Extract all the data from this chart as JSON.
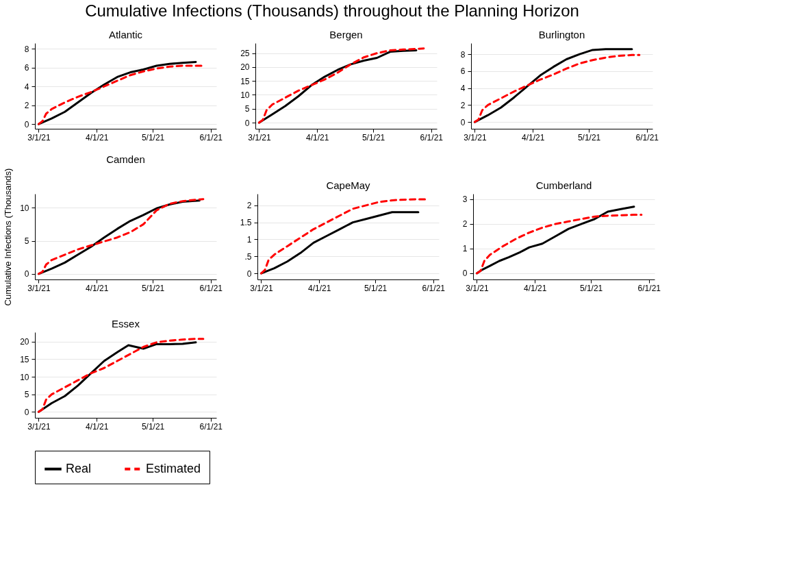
{
  "chart_data": [
    {
      "type": "line",
      "title": "Atlantic",
      "legend": "bottom",
      "annotations": [
        "Cumulative Infections (Thousands) throughout the Planning Horizon"
      ],
      "xlim": [
        "2021-02-27",
        "2021-06-04"
      ],
      "xticks": [
        {
          "value": "2021-03-01",
          "label": "3/1/21"
        },
        {
          "value": "2021-04-01",
          "label": "4/1/21"
        },
        {
          "value": "2021-05-01",
          "label": "5/1/21"
        },
        {
          "value": "2021-06-01",
          "label": "6/1/21"
        }
      ],
      "ylim": [
        -0.5,
        8.6
      ],
      "yticks": [
        0,
        2,
        4,
        6,
        8
      ],
      "grid": "y",
      "series": [
        {
          "name": "Real",
          "color": "#000000",
          "line_style": "solid",
          "x": [
            "2021-03-01",
            "2021-03-08",
            "2021-03-15",
            "2021-03-22",
            "2021-03-29",
            "2021-04-05",
            "2021-04-12",
            "2021-04-19",
            "2021-04-26",
            "2021-05-03",
            "2021-05-10",
            "2021-05-17",
            "2021-05-24"
          ],
          "values": [
            0,
            0.6,
            1.3,
            2.3,
            3.3,
            4.2,
            5.0,
            5.5,
            5.8,
            6.2,
            6.4,
            6.5,
            6.6
          ]
        },
        {
          "name": "Estimated",
          "color": "#ff0000",
          "line_style": "dashed",
          "x": [
            "2021-03-01",
            "2021-03-03",
            "2021-03-05",
            "2021-03-08",
            "2021-03-15",
            "2021-03-22",
            "2021-03-29",
            "2021-04-05",
            "2021-04-12",
            "2021-04-19",
            "2021-04-26",
            "2021-05-03",
            "2021-05-10",
            "2021-05-17",
            "2021-05-24",
            "2021-05-28"
          ],
          "values": [
            0,
            0.3,
            1.1,
            1.6,
            2.3,
            2.9,
            3.4,
            4.0,
            4.6,
            5.2,
            5.6,
            5.9,
            6.1,
            6.2,
            6.2,
            6.2
          ]
        }
      ]
    },
    {
      "type": "line",
      "title": "Bergen",
      "xlim": [
        "2021-02-27",
        "2021-06-04"
      ],
      "xticks": [
        {
          "value": "2021-03-01",
          "label": "3/1/21"
        },
        {
          "value": "2021-04-01",
          "label": "4/1/21"
        },
        {
          "value": "2021-05-01",
          "label": "5/1/21"
        },
        {
          "value": "2021-06-01",
          "label": "6/1/21"
        }
      ],
      "ylim": [
        -2.2,
        28.6
      ],
      "yticks": [
        0,
        5,
        10,
        15,
        20,
        25
      ],
      "grid": "y",
      "series": [
        {
          "name": "Real",
          "color": "#000000",
          "line_style": "solid",
          "x": [
            "2021-03-01",
            "2021-03-08",
            "2021-03-15",
            "2021-03-22",
            "2021-03-29",
            "2021-04-05",
            "2021-04-12",
            "2021-04-19",
            "2021-04-26",
            "2021-05-03",
            "2021-05-10",
            "2021-05-17",
            "2021-05-24"
          ],
          "values": [
            0,
            3,
            6,
            9.5,
            13.5,
            16.5,
            19,
            21,
            22.3,
            23.3,
            25.5,
            25.8,
            26
          ]
        },
        {
          "name": "Estimated",
          "color": "#ff0000",
          "line_style": "dashed",
          "x": [
            "2021-03-01",
            "2021-03-03",
            "2021-03-05",
            "2021-03-08",
            "2021-03-15",
            "2021-03-22",
            "2021-03-29",
            "2021-04-05",
            "2021-04-12",
            "2021-04-19",
            "2021-04-26",
            "2021-05-03",
            "2021-05-10",
            "2021-05-17",
            "2021-05-24",
            "2021-05-28"
          ],
          "values": [
            0,
            1,
            4.5,
            6.5,
            9,
            11.5,
            13.5,
            15.5,
            18,
            21,
            23.5,
            25,
            26,
            26.3,
            26.5,
            26.7
          ]
        }
      ]
    },
    {
      "type": "line",
      "title": "Burlington",
      "xlim": [
        "2021-02-27",
        "2021-06-04"
      ],
      "xticks": [
        {
          "value": "2021-03-01",
          "label": "3/1/21"
        },
        {
          "value": "2021-04-01",
          "label": "4/1/21"
        },
        {
          "value": "2021-05-01",
          "label": "5/1/21"
        },
        {
          "value": "2021-06-01",
          "label": "6/1/21"
        }
      ],
      "ylim": [
        -0.8,
        9.3
      ],
      "yticks": [
        0,
        2,
        4,
        6,
        8
      ],
      "grid": "y",
      "series": [
        {
          "name": "Real",
          "color": "#000000",
          "line_style": "solid",
          "x": [
            "2021-03-01",
            "2021-03-08",
            "2021-03-15",
            "2021-03-22",
            "2021-03-29",
            "2021-04-05",
            "2021-04-12",
            "2021-04-19",
            "2021-04-26",
            "2021-05-03",
            "2021-05-10",
            "2021-05-17",
            "2021-05-24"
          ],
          "values": [
            0,
            0.8,
            1.7,
            2.9,
            4.2,
            5.5,
            6.5,
            7.4,
            8.0,
            8.5,
            8.6,
            8.6,
            8.6
          ]
        },
        {
          "name": "Estimated",
          "color": "#ff0000",
          "line_style": "dashed",
          "x": [
            "2021-03-01",
            "2021-03-03",
            "2021-03-05",
            "2021-03-08",
            "2021-03-15",
            "2021-03-22",
            "2021-03-29",
            "2021-04-05",
            "2021-04-12",
            "2021-04-19",
            "2021-04-26",
            "2021-05-03",
            "2021-05-10",
            "2021-05-17",
            "2021-05-24",
            "2021-05-28"
          ],
          "values": [
            0,
            0.3,
            1.4,
            2.0,
            2.8,
            3.6,
            4.3,
            5.0,
            5.6,
            6.3,
            6.9,
            7.3,
            7.6,
            7.8,
            7.9,
            7.9
          ]
        }
      ]
    },
    {
      "type": "line",
      "title": "Camden",
      "ylabel": "Cumulative Infections (Thousands)",
      "xlim": [
        "2021-02-27",
        "2021-06-04"
      ],
      "xticks": [
        {
          "value": "2021-03-01",
          "label": "3/1/21"
        },
        {
          "value": "2021-04-01",
          "label": "4/1/21"
        },
        {
          "value": "2021-05-01",
          "label": "5/1/21"
        },
        {
          "value": "2021-06-01",
          "label": "6/1/21"
        }
      ],
      "ylim": [
        -0.85,
        12.1
      ],
      "yticks": [
        0,
        5,
        10
      ],
      "grid": "y",
      "series": [
        {
          "name": "Real",
          "color": "#000000",
          "line_style": "solid",
          "x": [
            "2021-03-01",
            "2021-03-08",
            "2021-03-15",
            "2021-03-22",
            "2021-03-29",
            "2021-04-05",
            "2021-04-12",
            "2021-04-19",
            "2021-04-26",
            "2021-05-03",
            "2021-05-10",
            "2021-05-17",
            "2021-05-26"
          ],
          "values": [
            0,
            0.8,
            1.7,
            2.9,
            4.1,
            5.5,
            6.8,
            8.0,
            8.9,
            9.9,
            10.5,
            10.9,
            11.1
          ]
        },
        {
          "name": "Estimated",
          "color": "#ff0000",
          "line_style": "dashed",
          "x": [
            "2021-03-01",
            "2021-03-03",
            "2021-03-05",
            "2021-03-08",
            "2021-03-15",
            "2021-03-22",
            "2021-03-29",
            "2021-04-05",
            "2021-04-12",
            "2021-04-19",
            "2021-04-26",
            "2021-05-03",
            "2021-05-10",
            "2021-05-17",
            "2021-05-24",
            "2021-05-28"
          ],
          "values": [
            0,
            0.3,
            1.4,
            2.1,
            2.9,
            3.7,
            4.3,
            4.9,
            5.5,
            6.3,
            7.5,
            9.6,
            10.6,
            11.0,
            11.2,
            11.3
          ]
        }
      ]
    },
    {
      "type": "line",
      "title": "CapeMay",
      "xlim": [
        "2021-02-27",
        "2021-06-04"
      ],
      "xticks": [
        {
          "value": "2021-03-01",
          "label": "3/1/21"
        },
        {
          "value": "2021-04-01",
          "label": "4/1/21"
        },
        {
          "value": "2021-05-01",
          "label": "5/1/21"
        },
        {
          "value": "2021-06-01",
          "label": "6/1/21"
        }
      ],
      "ylim": [
        -0.18,
        2.34
      ],
      "yticks": [
        0,
        {
          "value": 0.5,
          "label": ".5"
        },
        1,
        1.5,
        2
      ],
      "grid": "y",
      "series": [
        {
          "name": "Real",
          "color": "#000000",
          "line_style": "solid",
          "x": [
            "2021-03-01",
            "2021-03-08",
            "2021-03-15",
            "2021-03-22",
            "2021-03-29",
            "2021-04-05",
            "2021-04-12",
            "2021-04-19",
            "2021-04-26",
            "2021-05-03",
            "2021-05-10",
            "2021-05-17",
            "2021-05-24"
          ],
          "values": [
            0,
            0.15,
            0.35,
            0.6,
            0.9,
            1.1,
            1.3,
            1.5,
            1.6,
            1.7,
            1.8,
            1.8,
            1.8
          ]
        },
        {
          "name": "Estimated",
          "color": "#ff0000",
          "line_style": "dashed",
          "x": [
            "2021-03-01",
            "2021-03-03",
            "2021-03-05",
            "2021-03-08",
            "2021-03-15",
            "2021-03-22",
            "2021-03-29",
            "2021-04-05",
            "2021-04-12",
            "2021-04-19",
            "2021-04-26",
            "2021-05-03",
            "2021-05-10",
            "2021-05-17",
            "2021-05-24",
            "2021-05-28"
          ],
          "values": [
            0,
            0.1,
            0.4,
            0.55,
            0.8,
            1.05,
            1.3,
            1.5,
            1.7,
            1.9,
            2.0,
            2.1,
            2.15,
            2.17,
            2.18,
            2.18
          ]
        }
      ]
    },
    {
      "type": "line",
      "title": "Cumberland",
      "xlim": [
        "2021-02-27",
        "2021-06-04"
      ],
      "xticks": [
        {
          "value": "2021-03-01",
          "label": "3/1/21"
        },
        {
          "value": "2021-04-01",
          "label": "4/1/21"
        },
        {
          "value": "2021-05-01",
          "label": "5/1/21"
        },
        {
          "value": "2021-06-01",
          "label": "6/1/21"
        }
      ],
      "ylim": [
        -0.25,
        3.22
      ],
      "yticks": [
        0,
        1,
        2,
        3
      ],
      "grid": "y",
      "series": [
        {
          "name": "Real",
          "color": "#000000",
          "line_style": "solid",
          "x": [
            "2021-03-01",
            "2021-03-04",
            "2021-03-08",
            "2021-03-13",
            "2021-03-18",
            "2021-03-24",
            "2021-03-29",
            "2021-04-05",
            "2021-04-12",
            "2021-04-19",
            "2021-04-26",
            "2021-05-03",
            "2021-05-10",
            "2021-05-17",
            "2021-05-24"
          ],
          "values": [
            0,
            0.15,
            0.3,
            0.5,
            0.65,
            0.85,
            1.05,
            1.2,
            1.5,
            1.8,
            2.0,
            2.2,
            2.5,
            2.6,
            2.7
          ]
        },
        {
          "name": "Estimated",
          "color": "#ff0000",
          "line_style": "dashed",
          "x": [
            "2021-03-01",
            "2021-03-03",
            "2021-03-05",
            "2021-03-08",
            "2021-03-15",
            "2021-03-22",
            "2021-03-29",
            "2021-04-05",
            "2021-04-12",
            "2021-04-19",
            "2021-04-26",
            "2021-05-03",
            "2021-05-10",
            "2021-05-17",
            "2021-05-24",
            "2021-05-28"
          ],
          "values": [
            0,
            0.1,
            0.5,
            0.75,
            1.1,
            1.4,
            1.65,
            1.85,
            2.0,
            2.1,
            2.2,
            2.3,
            2.33,
            2.35,
            2.37,
            2.37
          ]
        }
      ]
    },
    {
      "type": "line",
      "title": "Essex",
      "xlim": [
        "2021-02-27",
        "2021-06-04"
      ],
      "xticks": [
        {
          "value": "2021-03-01",
          "label": "3/1/21"
        },
        {
          "value": "2021-04-01",
          "label": "4/1/21"
        },
        {
          "value": "2021-05-01",
          "label": "5/1/21"
        },
        {
          "value": "2021-06-01",
          "label": "6/1/21"
        }
      ],
      "ylim": [
        -1.7,
        22.7
      ],
      "yticks": [
        0,
        5,
        10,
        15,
        20
      ],
      "grid": "y",
      "series": [
        {
          "name": "Real",
          "color": "#000000",
          "line_style": "solid",
          "x": [
            "2021-03-01",
            "2021-03-08",
            "2021-03-15",
            "2021-03-22",
            "2021-03-29",
            "2021-04-05",
            "2021-04-12",
            "2021-04-18",
            "2021-04-26",
            "2021-05-03",
            "2021-05-10",
            "2021-05-17",
            "2021-05-24"
          ],
          "values": [
            0,
            2.5,
            4.5,
            7.5,
            11,
            14.5,
            17,
            19,
            18,
            19.3,
            19.3,
            19.4,
            19.8
          ]
        },
        {
          "name": "Estimated",
          "color": "#ff0000",
          "line_style": "dashed",
          "x": [
            "2021-03-01",
            "2021-03-03",
            "2021-03-05",
            "2021-03-08",
            "2021-03-15",
            "2021-03-22",
            "2021-03-29",
            "2021-04-05",
            "2021-04-12",
            "2021-04-19",
            "2021-04-26",
            "2021-05-03",
            "2021-05-10",
            "2021-05-17",
            "2021-05-24",
            "2021-05-28"
          ],
          "values": [
            0,
            0.7,
            3.5,
            5,
            7,
            9,
            11,
            12.5,
            14.5,
            16.5,
            18.5,
            19.8,
            20.3,
            20.6,
            20.8,
            20.8
          ]
        }
      ]
    }
  ]
}
